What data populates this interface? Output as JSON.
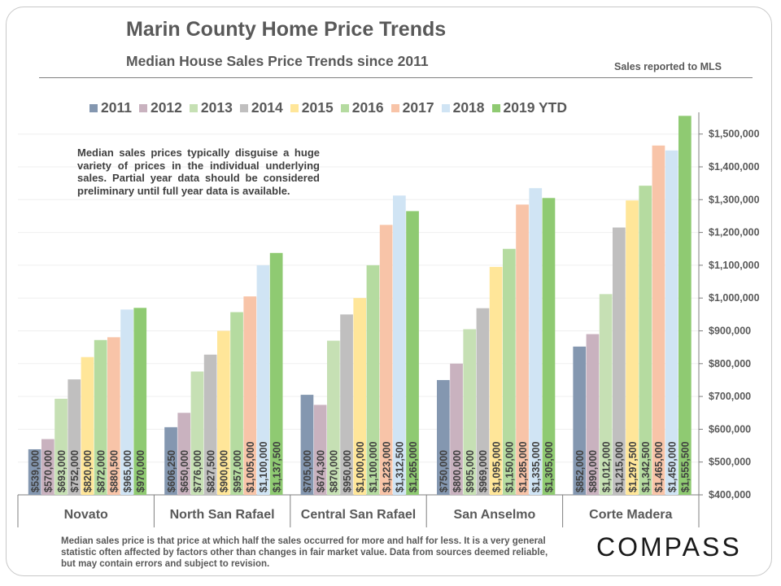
{
  "header": {
    "title": "Marin County Home Price Trends",
    "subtitle": "Median House Sales Price Trends since 2011",
    "source": "Sales reported to MLS"
  },
  "note": "Median sales prices typically disguise a huge variety of prices in the individual underlying sales. Partial year data should be considered preliminary until full year data is available.",
  "footer": "Median sales price is that price at which half the sales occurred for more and half for less. It is a very general statistic often affected by factors other than changes in fair market value. Data from sources deemed reliable, but may contain errors and subject to revision.",
  "brand": "COMPASS",
  "chart_data": {
    "type": "bar",
    "categories": [
      "Novato",
      "North San Rafael",
      "Central San Rafael",
      "San Anselmo",
      "Corte Madera"
    ],
    "series": [
      {
        "name": "2011",
        "color": "#8497b0",
        "values": [
          539000,
          606250,
          705000,
          750000,
          852000
        ],
        "labels": [
          "$539,000",
          "$606,250",
          "$705,000",
          "$750,000",
          "$852,000"
        ]
      },
      {
        "name": "2012",
        "color": "#c9b2bf",
        "values": [
          570000,
          650000,
          674300,
          800000,
          890000
        ],
        "labels": [
          "$570,000",
          "$650,000",
          "$674,300",
          "$800,000",
          "$890,000"
        ]
      },
      {
        "name": "2013",
        "color": "#c6e0b4",
        "values": [
          693000,
          776000,
          870000,
          905000,
          1012000
        ],
        "labels": [
          "$693,000",
          "$776,000",
          "$870,000",
          "$905,000",
          "$1,012,000"
        ]
      },
      {
        "name": "2014",
        "color": "#c0bfbf",
        "values": [
          752000,
          827500,
          950000,
          969000,
          1215000
        ],
        "labels": [
          "$752,000",
          "$827,500",
          "$950,000",
          "$969,000",
          "$1,215,000"
        ]
      },
      {
        "name": "2015",
        "color": "#ffe699",
        "values": [
          820000,
          900000,
          1000000,
          1095000,
          1297500
        ],
        "labels": [
          "$820,000",
          "$900,000",
          "$1,000,000",
          "$1,095,000",
          "$1,297,500"
        ]
      },
      {
        "name": "2016",
        "color": "#b5dba0",
        "values": [
          872000,
          957000,
          1100000,
          1150000,
          1342500
        ],
        "labels": [
          "$872,000",
          "$957,000",
          "$1,100,000",
          "$1,150,000",
          "$1,342,500"
        ]
      },
      {
        "name": "2017",
        "color": "#f8c4a8",
        "values": [
          880500,
          1005000,
          1223000,
          1285000,
          1465000
        ],
        "labels": [
          "$880,500",
          "$1,005,000",
          "$1,223,000",
          "$1,285,000",
          "$1,465,000"
        ]
      },
      {
        "name": "2018",
        "color": "#d0e4f4",
        "values": [
          965000,
          1100000,
          1312500,
          1335000,
          1450000
        ],
        "labels": [
          "$965,000",
          "$1,100,000",
          "$1,312,500",
          "$1,335,000",
          "$1,450,000"
        ]
      },
      {
        "name": "2019 YTD",
        "color": "#8fca72",
        "values": [
          970000,
          1137500,
          1265000,
          1305000,
          1555500
        ],
        "labels": [
          "$970,000",
          "$1,137,500",
          "$1,265,000",
          "$1,305,000",
          "$1,555,500"
        ]
      }
    ],
    "y_ticks": [
      "$400,000",
      "$500,000",
      "$600,000",
      "$700,000",
      "$800,000",
      "$900,000",
      "$1,000,000",
      "$1,100,000",
      "$1,200,000",
      "$1,300,000",
      "$1,400,000",
      "$1,500,000"
    ],
    "ylim": [
      400000,
      1560000
    ],
    "y_axis_side": "right",
    "grid": true,
    "legend_position": "top"
  }
}
